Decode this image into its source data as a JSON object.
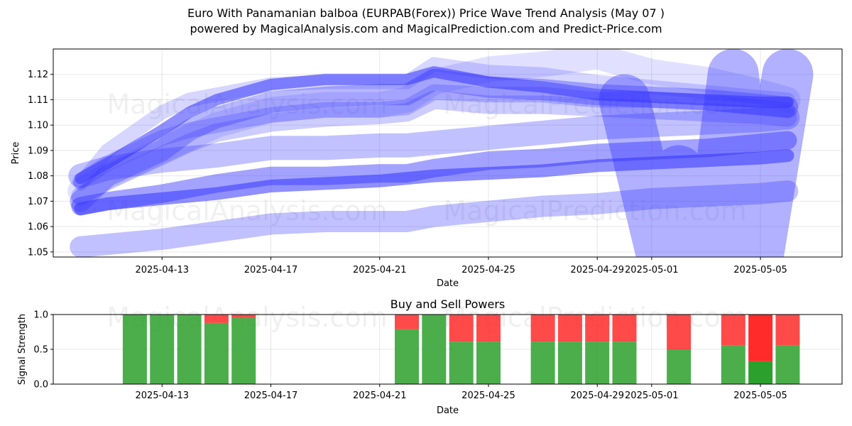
{
  "title_line1": "Euro With Panamanian balboa (EURPAB(Forex)) Price Wave Trend Analysis (May 07 )",
  "title_line2": "powered by MagicalAnalysis.com and MagicalPrediction.com and Predict-Price.com",
  "watermarks": [
    "MagicalAnalysis.com",
    "MagicalPrediction.com"
  ],
  "colors": {
    "wave": "#3333ff",
    "buy": "#2ca02c",
    "sell": "#ff2a2a"
  },
  "chart_data": [
    {
      "type": "line",
      "title": "",
      "xlabel": "Date",
      "ylabel": "Price",
      "xlim": [
        "2025-04-09",
        "2025-05-08"
      ],
      "ylim": [
        1.048,
        1.13
      ],
      "grid": true,
      "x_ticks": [
        "2025-04-13",
        "2025-04-17",
        "2025-04-21",
        "2025-04-25",
        "2025-04-29",
        "2025-05-01",
        "2025-05-05"
      ],
      "y_ticks": [
        "1.05",
        "1.06",
        "1.07",
        "1.08",
        "1.09",
        "1.10",
        "1.11",
        "1.12"
      ],
      "series": [
        {
          "x": [
            "2025-04-10",
            "2025-04-11",
            "2025-04-13",
            "2025-04-15",
            "2025-04-17",
            "2025-04-19",
            "2025-04-21",
            "2025-04-22",
            "2025-04-23",
            "2025-04-25",
            "2025-04-27",
            "2025-04-29",
            "2025-05-01",
            "2025-05-03",
            "2025-05-05",
            "2025-05-06"
          ],
          "values": [
            1.08,
            1.083,
            1.086,
            1.088,
            1.091,
            1.091,
            1.092,
            1.092,
            1.093,
            1.095,
            1.097,
            1.099,
            1.1,
            1.101,
            1.102,
            1.103
          ]
        },
        {
          "x": [
            "2025-04-10",
            "2025-04-11",
            "2025-04-13",
            "2025-04-15",
            "2025-04-17",
            "2025-04-19",
            "2025-04-21",
            "2025-04-22",
            "2025-04-23",
            "2025-04-25",
            "2025-04-27",
            "2025-04-29",
            "2025-05-01",
            "2025-05-03",
            "2025-05-05",
            "2025-05-06"
          ],
          "values": [
            1.068,
            1.07,
            1.073,
            1.077,
            1.08,
            1.08,
            1.081,
            1.081,
            1.083,
            1.086,
            1.087,
            1.089,
            1.09,
            1.091,
            1.093,
            1.094
          ]
        },
        {
          "x": [
            "2025-04-10",
            "2025-04-11",
            "2025-04-13",
            "2025-04-15",
            "2025-04-17",
            "2025-04-19",
            "2025-04-21",
            "2025-04-22",
            "2025-04-23",
            "2025-04-25",
            "2025-04-27",
            "2025-04-29",
            "2025-05-01",
            "2025-05-03",
            "2025-05-05",
            "2025-05-06"
          ],
          "values": [
            1.067,
            1.069,
            1.071,
            1.073,
            1.076,
            1.077,
            1.078,
            1.079,
            1.08,
            1.081,
            1.082,
            1.084,
            1.085,
            1.086,
            1.087,
            1.088
          ]
        },
        {
          "x": [
            "2025-04-10",
            "2025-04-11",
            "2025-04-13",
            "2025-04-15",
            "2025-04-17",
            "2025-04-19",
            "2025-04-21",
            "2025-04-22",
            "2025-04-23",
            "2025-04-25",
            "2025-04-27",
            "2025-04-29",
            "2025-05-01",
            "2025-05-03",
            "2025-05-05",
            "2025-05-06"
          ],
          "values": [
            1.052,
            1.053,
            1.055,
            1.058,
            1.061,
            1.062,
            1.062,
            1.062,
            1.064,
            1.066,
            1.068,
            1.069,
            1.071,
            1.072,
            1.073,
            1.074
          ]
        },
        {
          "x": [
            "2025-04-10",
            "2025-04-11",
            "2025-04-13",
            "2025-04-14",
            "2025-04-15",
            "2025-04-17",
            "2025-04-19",
            "2025-04-21",
            "2025-04-22",
            "2025-04-23",
            "2025-04-25",
            "2025-04-27",
            "2025-04-29",
            "2025-05-01",
            "2025-05-03",
            "2025-05-05",
            "2025-05-06"
          ],
          "values": [
            1.078,
            1.085,
            1.095,
            1.098,
            1.1,
            1.104,
            1.106,
            1.106,
            1.107,
            1.113,
            1.112,
            1.112,
            1.11,
            1.11,
            1.109,
            1.107,
            1.106
          ]
        },
        {
          "x": [
            "2025-04-10",
            "2025-04-11",
            "2025-04-13",
            "2025-04-14",
            "2025-04-15",
            "2025-04-17",
            "2025-04-19",
            "2025-04-21",
            "2025-04-22",
            "2025-04-23",
            "2025-04-25",
            "2025-04-27",
            "2025-04-29",
            "2025-05-01",
            "2025-05-03",
            "2025-05-05",
            "2025-05-06"
          ],
          "values": [
            1.07,
            1.08,
            1.09,
            1.098,
            1.103,
            1.109,
            1.111,
            1.112,
            1.112,
            1.118,
            1.115,
            1.114,
            1.112,
            1.111,
            1.11,
            1.108,
            1.107
          ]
        },
        {
          "x": [
            "2025-04-10",
            "2025-04-11",
            "2025-04-13",
            "2025-04-14",
            "2025-04-15",
            "2025-04-17",
            "2025-04-19",
            "2025-04-21",
            "2025-04-22",
            "2025-04-23",
            "2025-04-25",
            "2025-04-27",
            "2025-04-29",
            "2025-05-01",
            "2025-05-03",
            "2025-05-05",
            "2025-05-06"
          ],
          "values": [
            1.079,
            1.085,
            1.098,
            1.105,
            1.11,
            1.116,
            1.118,
            1.118,
            1.118,
            1.121,
            1.117,
            1.115,
            1.112,
            1.111,
            1.11,
            1.109,
            1.109
          ]
        },
        {
          "x": [
            "2025-04-10",
            "2025-04-11",
            "2025-04-13",
            "2025-04-14",
            "2025-04-15",
            "2025-04-17",
            "2025-04-19",
            "2025-04-21",
            "2025-04-22",
            "2025-04-23",
            "2025-04-25",
            "2025-04-27",
            "2025-04-29",
            "2025-05-01",
            "2025-05-03",
            "2025-05-05",
            "2025-05-06"
          ],
          "values": [
            1.072,
            1.078,
            1.088,
            1.093,
            1.097,
            1.101,
            1.103,
            1.104,
            1.105,
            1.11,
            1.108,
            1.108,
            1.107,
            1.106,
            1.105,
            1.104,
            1.103
          ]
        },
        {
          "x": [
            "2025-04-10",
            "2025-04-11",
            "2025-04-13",
            "2025-04-14",
            "2025-04-15",
            "2025-04-17",
            "2025-04-19",
            "2025-04-21",
            "2025-04-22",
            "2025-04-23",
            "2025-04-25",
            "2025-04-27",
            "2025-04-29",
            "2025-05-01",
            "2025-05-03",
            "2025-05-05",
            "2025-05-06"
          ],
          "values": [
            1.077,
            1.09,
            1.105,
            1.11,
            1.112,
            1.116,
            1.117,
            1.117,
            1.117,
            1.124,
            1.121,
            1.12,
            1.117,
            1.115,
            1.113,
            1.111,
            1.11
          ]
        },
        {
          "x": [
            "2025-04-10",
            "2025-04-11",
            "2025-04-13",
            "2025-04-15",
            "2025-04-17",
            "2025-04-19",
            "2025-04-21",
            "2025-04-22",
            "2025-04-23",
            "2025-04-25",
            "2025-04-27",
            "2025-04-29",
            "2025-05-01",
            "2025-05-03",
            "2025-05-05",
            "2025-05-06"
          ],
          "values": [
            1.074,
            1.08,
            1.09,
            1.1,
            1.106,
            1.108,
            1.108,
            1.11,
            1.117,
            1.122,
            1.124,
            1.127,
            1.121,
            1.118,
            1.113,
            1.11
          ]
        }
      ],
      "wave_letter_W": {
        "x": [
          "2025-04-30",
          "2025-05-02",
          "2025-05-04",
          "2025-05-06"
        ],
        "values": [
          1.11,
          1.082,
          1.12,
          1.12
        ],
        "low": 1.04
      }
    },
    {
      "type": "bar",
      "title": "Buy and Sell Powers",
      "xlabel": "Date",
      "ylabel": "Signal Strength",
      "ylim": [
        0,
        1.0
      ],
      "grid": true,
      "x_ticks": [
        "2025-04-13",
        "2025-04-17",
        "2025-04-21",
        "2025-04-25",
        "2025-04-29",
        "2025-05-01",
        "2025-05-05"
      ],
      "y_ticks": [
        "0.0",
        "0.5",
        "1.0"
      ],
      "categories": [
        "2025-04-12",
        "2025-04-13",
        "2025-04-14",
        "2025-04-15",
        "2025-04-16",
        "2025-04-22",
        "2025-04-23",
        "2025-04-24",
        "2025-04-25",
        "2025-04-27",
        "2025-04-28",
        "2025-04-29",
        "2025-04-30",
        "2025-05-02",
        "2025-05-04",
        "2025-05-05",
        "2025-05-06"
      ],
      "series": [
        {
          "name": "buy",
          "values": [
            1.0,
            1.0,
            1.0,
            0.88,
            0.95,
            0.79,
            1.0,
            0.61,
            0.61,
            0.61,
            0.61,
            0.61,
            0.61,
            0.5,
            0.56,
            0.33,
            0.56
          ]
        },
        {
          "name": "sell",
          "values": [
            0.0,
            0.0,
            0.0,
            0.12,
            0.05,
            0.21,
            0.0,
            0.39,
            0.39,
            0.39,
            0.39,
            0.39,
            0.39,
            0.5,
            0.44,
            0.67,
            0.44
          ]
        }
      ]
    }
  ]
}
